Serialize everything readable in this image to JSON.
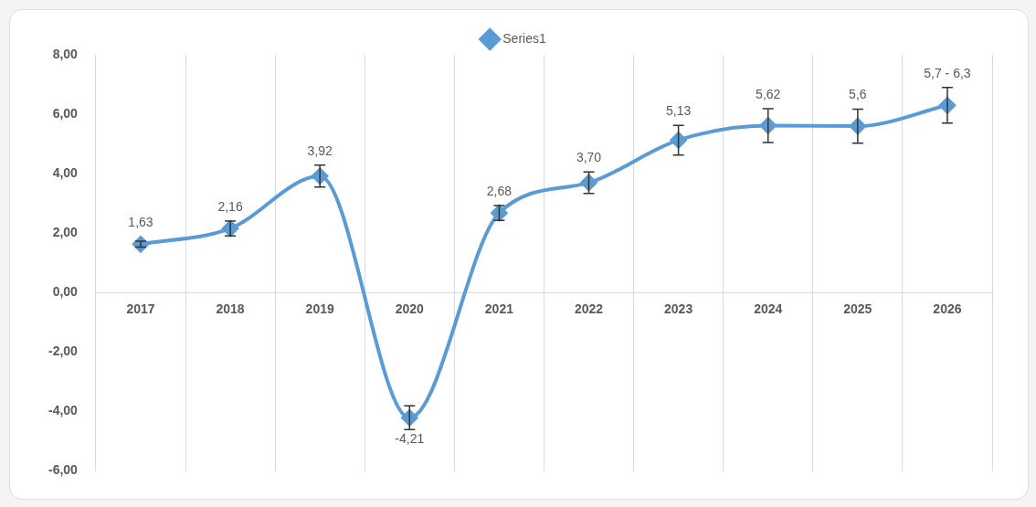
{
  "chart_data": {
    "type": "line",
    "categories": [
      "2017",
      "2018",
      "2019",
      "2020",
      "2021",
      "2022",
      "2023",
      "2024",
      "2025",
      "2026"
    ],
    "series": [
      {
        "name": "Series1",
        "color": "#5b9bd5",
        "values": [
          1.63,
          2.16,
          3.92,
          -4.21,
          2.68,
          3.7,
          5.13,
          5.62,
          5.6,
          6.3
        ],
        "errors": [
          0.1,
          0.25,
          0.37,
          0.4,
          0.25,
          0.36,
          0.5,
          0.57,
          0.57,
          0.6
        ],
        "value_labels": [
          "1,63",
          "2,16",
          "3,92",
          "-4,21",
          "2,68",
          "3,70",
          "5,13",
          "5,62",
          "5,6",
          null
        ]
      }
    ],
    "annotations": [
      {
        "text": "5,7 - 6,3",
        "x": "2026",
        "y": 6.3
      }
    ],
    "ylim": [
      -6,
      8
    ],
    "yticks": [
      {
        "value": -6,
        "label": "-6,00"
      },
      {
        "value": -4,
        "label": "-4,00"
      },
      {
        "value": -2,
        "label": "-2,00"
      },
      {
        "value": 0,
        "label": "0,00"
      },
      {
        "value": 2,
        "label": "2,00"
      },
      {
        "value": 4,
        "label": "4,00"
      },
      {
        "value": 6,
        "label": "6,00"
      },
      {
        "value": 8,
        "label": "8,00"
      }
    ],
    "grid": "x",
    "legend": "top",
    "marker": "diamond",
    "line_style": "solid"
  }
}
